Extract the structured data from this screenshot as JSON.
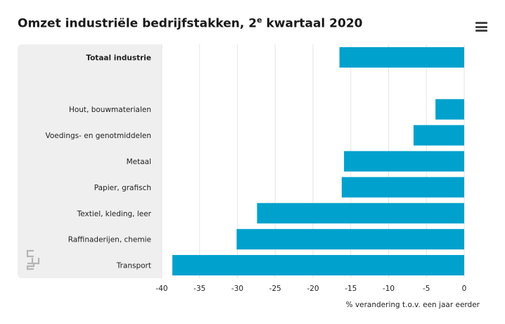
{
  "header": {
    "title_part1": "Omzet industriële bedrijfstakken, 2",
    "title_sup": "e",
    "title_part2": " kwartaal 2020"
  },
  "menu": {
    "icon": "hamburger-menu-icon"
  },
  "logo": {
    "icon": "cbs-logo-icon"
  },
  "chart_data": {
    "type": "bar",
    "orientation": "horizontal",
    "categories": [
      "Totaal industrie",
      "",
      "Hout, bouwmaterialen",
      "Voedings- en genotmiddelen",
      "Metaal",
      "Papier, grafisch",
      "Textiel, kleding, leer",
      "Raffinaderijen, chemie",
      "Transport"
    ],
    "values": [
      -16.5,
      null,
      -3.8,
      -6.7,
      -15.9,
      -16.2,
      -27.4,
      -30.1,
      -38.6
    ],
    "bold_categories": [
      "Totaal industrie"
    ],
    "xlim": [
      -40,
      0
    ],
    "xticks": [
      "-40",
      "-35",
      "-30",
      "-25",
      "-20",
      "-15",
      "-10",
      "-5",
      "0"
    ],
    "xlabel": "% verandering t.o.v. een jaar eerder",
    "ylabel": "",
    "grid": true,
    "bar_color": "#00a1cd",
    "grid_color": "#e6e6e6",
    "panel_color": "#efefef"
  }
}
